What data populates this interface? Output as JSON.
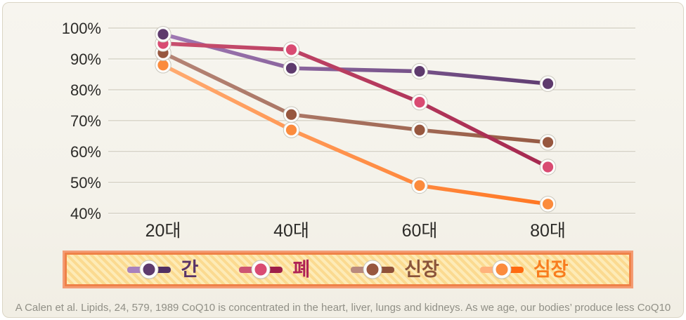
{
  "chart_data": {
    "type": "line",
    "title": "",
    "categories": [
      "20대",
      "40대",
      "60대",
      "80대"
    ],
    "y_tick_labels": [
      "100%",
      "90%",
      "80%",
      "70%",
      "60%",
      "50%",
      "40%"
    ],
    "y_tick_values": [
      100,
      90,
      80,
      70,
      60,
      50,
      40
    ],
    "ylim": [
      40,
      100
    ],
    "grid": true,
    "legend_position": "bottom",
    "series": [
      {
        "name": "간",
        "organ_en": "liver",
        "values": [
          98,
          87,
          86,
          82
        ],
        "marker_color": "#5E3A6D",
        "line_color_start": "#A981BD",
        "line_color_end": "#523063",
        "label_color": "#5A3468"
      },
      {
        "name": "폐",
        "organ_en": "lung",
        "values": [
          95,
          93,
          76,
          55
        ],
        "marker_color": "#D94B72",
        "line_color_start": "#CD5573",
        "line_color_end": "#9E2049",
        "label_color": "#B02355"
      },
      {
        "name": "신장",
        "organ_en": "kidney",
        "values": [
          92,
          72,
          67,
          63
        ],
        "marker_color": "#97573F",
        "line_color_start": "#B98A7D",
        "line_color_end": "#8F5138",
        "label_color": "#8A543B"
      },
      {
        "name": "심장",
        "organ_en": "heart",
        "values": [
          88,
          67,
          49,
          43
        ],
        "marker_color": "#FB8B3D",
        "line_color_start": "#FFB27C",
        "line_color_end": "#FF6A10",
        "label_color": "#F87C1E"
      }
    ]
  },
  "footnote": "A Calen et al. Lipids, 24, 579, 1989 CoQ10 is concentrated in the heart, liver, lungs and kidneys. As we age, our bodies’ produce less CoQ10",
  "colors": {
    "background": "#F5F3EC",
    "panel_border": "#DBD5C5",
    "gridline": "#D7D3C7",
    "gridline_highlight": "#FCFBF7",
    "axis_text": "#2C2B28",
    "footnote_text": "#908F86",
    "legend_border_inner": "#EF8148",
    "legend_border_outer": "#F49C74",
    "legend_stripe_light": "#FDEBB7",
    "legend_stripe_dark": "#FBDA90",
    "marker_ring": "#FDFDFB",
    "marker_ring_edge": "#C9C6BC"
  }
}
